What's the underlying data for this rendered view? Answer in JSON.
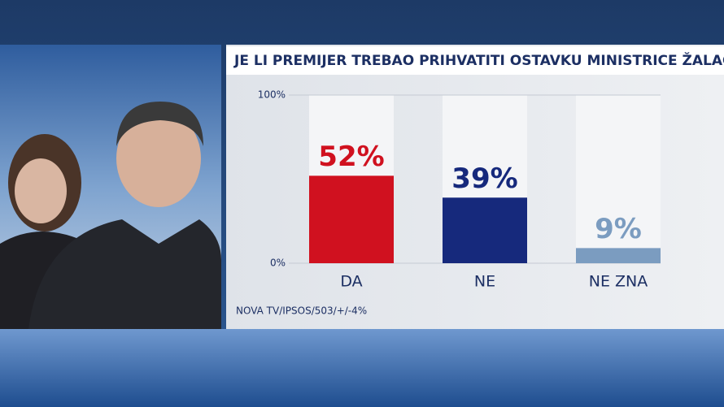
{
  "chart_data": {
    "type": "bar",
    "title": "JE LI PREMIJER TREBAO PRIHVATITI OSTAVKU MINISTRICE ŽALAC?",
    "categories": [
      "DA",
      "NE",
      "NE ZNA"
    ],
    "values": [
      52,
      39,
      9
    ],
    "value_labels": [
      "52%",
      "39%",
      "9%"
    ],
    "colors": [
      "#d0111f",
      "#16297c",
      "#7b9cc0"
    ],
    "ylim": [
      0,
      100
    ],
    "yticks": [
      {
        "value": 0,
        "label": "0%"
      },
      {
        "value": 100,
        "label": "100%"
      }
    ],
    "source": "NOVA TV/IPSOS/503/+/-4%"
  }
}
